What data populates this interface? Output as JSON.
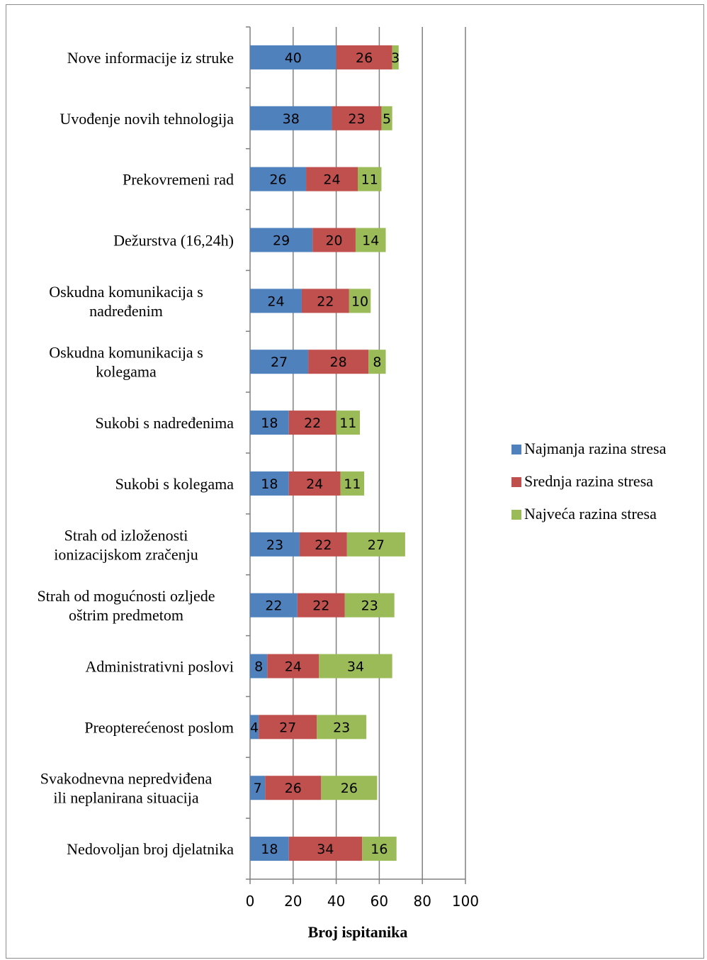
{
  "chart_data": {
    "type": "bar",
    "orientation": "horizontal",
    "stacked": true,
    "title": "",
    "xlabel": "Broj ispitanika",
    "ylabel": "",
    "xlim": [
      0,
      100
    ],
    "xticks": [
      0,
      20,
      40,
      60,
      80,
      100
    ],
    "grid": "vertical",
    "legend_position": "right",
    "categories": [
      [
        "Nove informacije iz struke"
      ],
      [
        "Uvođenje novih tehnologija"
      ],
      [
        "Prekovremeni rad"
      ],
      [
        "Dežurstva (16,24h)"
      ],
      [
        "Oskudna komunikacija s",
        "nadređenim"
      ],
      [
        "Oskudna komunikacija s",
        "kolegama"
      ],
      [
        "Sukobi s nadređenima"
      ],
      [
        "Sukobi s kolegama"
      ],
      [
        "Strah od izloženosti",
        "ionizacijskom zračenju"
      ],
      [
        "Strah od mogućnosti ozljede",
        "oštrim predmetom"
      ],
      [
        "Administrativni poslovi"
      ],
      [
        "Preopterećenost poslom"
      ],
      [
        "Svakodnevna nepredviđena",
        "ili neplanirana situacija"
      ],
      [
        "Nedovoljan broj djelatnika"
      ]
    ],
    "series": [
      {
        "name": "Najmanja razina stresa",
        "color": "#4f81bd",
        "values": [
          40,
          38,
          26,
          29,
          24,
          27,
          18,
          18,
          23,
          22,
          8,
          4,
          7,
          18
        ]
      },
      {
        "name": "Srednja razina stresa",
        "color": "#c0504d",
        "values": [
          26,
          23,
          24,
          20,
          22,
          28,
          22,
          24,
          22,
          22,
          24,
          27,
          26,
          34
        ]
      },
      {
        "name": "Najveća razina stresa",
        "color": "#9bbb59",
        "values": [
          3,
          5,
          11,
          14,
          10,
          8,
          11,
          11,
          27,
          23,
          34,
          23,
          26,
          16
        ]
      }
    ]
  }
}
